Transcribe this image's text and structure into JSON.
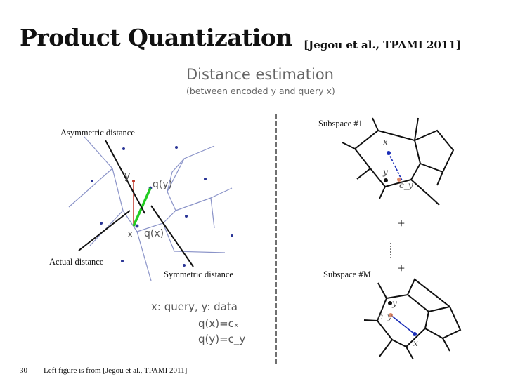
{
  "slide": {
    "title": "Product Quantization",
    "citation": "[Jegou et al., TPAMI 2011]",
    "section_title": "Distance estimation",
    "section_subtitle": "(between encoded y and query x)",
    "page_number": "30",
    "footer": "Left figure is from [Jegou et al., TPAMI 2011]"
  },
  "left_figure": {
    "asymmetric_label": "Asymmetric distance",
    "actual_label": "Actual distance",
    "symmetric_label": "Symmetric distance",
    "point_labels": {
      "y": "y",
      "qy": "q(y)",
      "x": "x",
      "qx": "q(x)"
    },
    "legend": {
      "line1": "x: query, y: data",
      "line2": "q(x)=cₓ",
      "line3": "q(y)=c_y"
    },
    "colors": {
      "voronoi": "#8a93c8",
      "centroid": "#2a3596",
      "actual": "#c0392b",
      "approx": "#22cc22"
    }
  },
  "right_figure": {
    "subspace_first": "Subspace #1",
    "subspace_last": "Subspace #M",
    "plus_top": "+",
    "plus_bottom": "+",
    "ellipsis": "……",
    "sub1_labels": {
      "x": "x",
      "y": "y",
      "cy": "c_y"
    },
    "subM_labels": {
      "x": "x",
      "y": "y",
      "cy": "c_y"
    },
    "colors": {
      "query": "#1a2db8",
      "data": "#111111",
      "centroid": "#e08a6a"
    }
  }
}
